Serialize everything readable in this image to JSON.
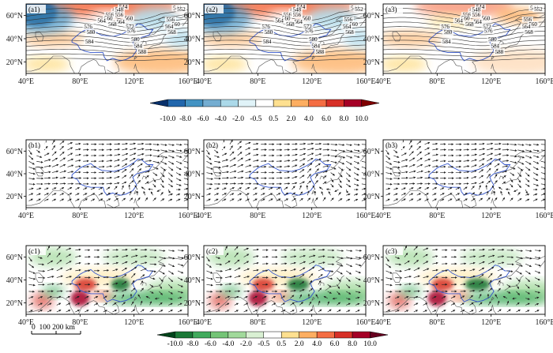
{
  "panels": {
    "a": [
      "(a1)",
      "(a2)",
      "(a3)"
    ],
    "b": [
      "(b1)",
      "(b2)",
      "(b3)"
    ],
    "c": [
      "(c1)",
      "(c2)",
      "(c3)"
    ]
  },
  "axes": {
    "lon_ticks": [
      "40°E",
      "80°E",
      "120°E",
      "160°E"
    ],
    "lat_ticks": [
      "60°N",
      "40°N",
      "20°N"
    ]
  },
  "contour_labels": [
    "544",
    "548",
    "552",
    "556",
    "560",
    "564",
    "568",
    "572",
    "576",
    "580",
    "584",
    "588"
  ],
  "colorbar_top": {
    "ticks": [
      "-10.0",
      "-8.0",
      "-6.0",
      "-4.0",
      "-2.0",
      "-0.5",
      "0.5",
      "2.0",
      "4.0",
      "6.0",
      "8.0",
      "10.0"
    ],
    "colors": [
      "#08306b",
      "#2166ac",
      "#4393c3",
      "#74add1",
      "#abd9e9",
      "#e0f3f8",
      "#ffffff",
      "#fee090",
      "#fdae61",
      "#f46d43",
      "#d73027",
      "#a50026",
      "#7f0000"
    ]
  },
  "colorbar_bottom": {
    "ticks": [
      "-10.0",
      "-8.0",
      "-6.0",
      "-4.0",
      "-2.0",
      "-0.5",
      "0.5",
      "2.0",
      "4.0",
      "6.0",
      "8.0",
      "10.0"
    ],
    "colors": [
      "#00441b",
      "#1b7837",
      "#41ab5d",
      "#74c476",
      "#a1d99b",
      "#d9f0d3",
      "#ffffff",
      "#fee090",
      "#fdae61",
      "#f46d43",
      "#d73027",
      "#a50026",
      "#67001f"
    ]
  },
  "scale_bar": {
    "label": "0  100 200 km"
  }
}
